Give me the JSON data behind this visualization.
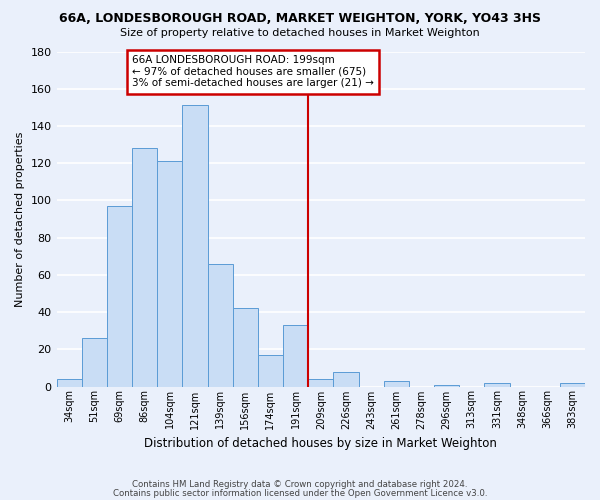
{
  "title": "66A, LONDESBOROUGH ROAD, MARKET WEIGHTON, YORK, YO43 3HS",
  "subtitle": "Size of property relative to detached houses in Market Weighton",
  "xlabel": "Distribution of detached houses by size in Market Weighton",
  "ylabel": "Number of detached properties",
  "bar_labels": [
    "34sqm",
    "51sqm",
    "69sqm",
    "86sqm",
    "104sqm",
    "121sqm",
    "139sqm",
    "156sqm",
    "174sqm",
    "191sqm",
    "209sqm",
    "226sqm",
    "243sqm",
    "261sqm",
    "278sqm",
    "296sqm",
    "313sqm",
    "331sqm",
    "348sqm",
    "366sqm",
    "383sqm"
  ],
  "bar_heights": [
    4,
    26,
    97,
    128,
    121,
    151,
    66,
    42,
    17,
    33,
    4,
    8,
    0,
    3,
    0,
    1,
    0,
    2,
    0,
    0,
    2
  ],
  "bar_color": "#c9ddf5",
  "bar_edge_color": "#5b9bd5",
  "background_color": "#eaf0fb",
  "grid_color": "#d0daea",
  "vline_x": 9.5,
  "vline_color": "#cc0000",
  "annotation_text": "66A LONDESBOROUGH ROAD: 199sqm\n← 97% of detached houses are smaller (675)\n3% of semi-detached houses are larger (21) →",
  "annotation_box_color": "#cc0000",
  "ylim": [
    0,
    180
  ],
  "yticks": [
    0,
    20,
    40,
    60,
    80,
    100,
    120,
    140,
    160,
    180
  ],
  "footer_line1": "Contains HM Land Registry data © Crown copyright and database right 2024.",
  "footer_line2": "Contains public sector information licensed under the Open Government Licence v3.0."
}
